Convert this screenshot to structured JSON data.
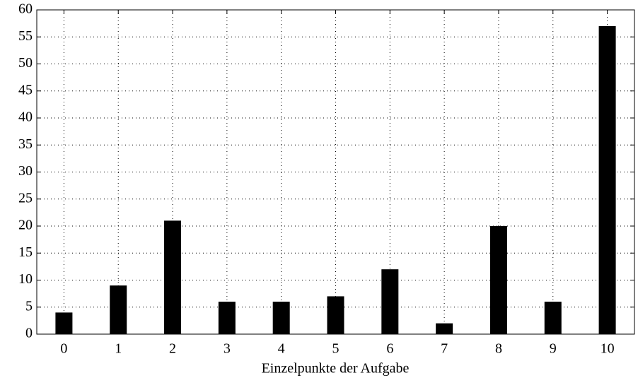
{
  "chart_data": {
    "type": "bar",
    "xlabel": "Einzelpunkte der Aufgabe",
    "categories": [
      "0",
      "1",
      "2",
      "3",
      "4",
      "5",
      "6",
      "7",
      "8",
      "9",
      "10"
    ],
    "values": [
      4,
      9,
      21,
      6,
      6,
      7,
      12,
      2,
      20,
      6,
      57
    ],
    "color": "#000000",
    "ylim": [
      0,
      60
    ],
    "yticks": [
      0,
      5,
      10,
      15,
      20,
      25,
      30,
      35,
      40,
      45,
      50,
      55,
      60
    ],
    "grid": true
  }
}
